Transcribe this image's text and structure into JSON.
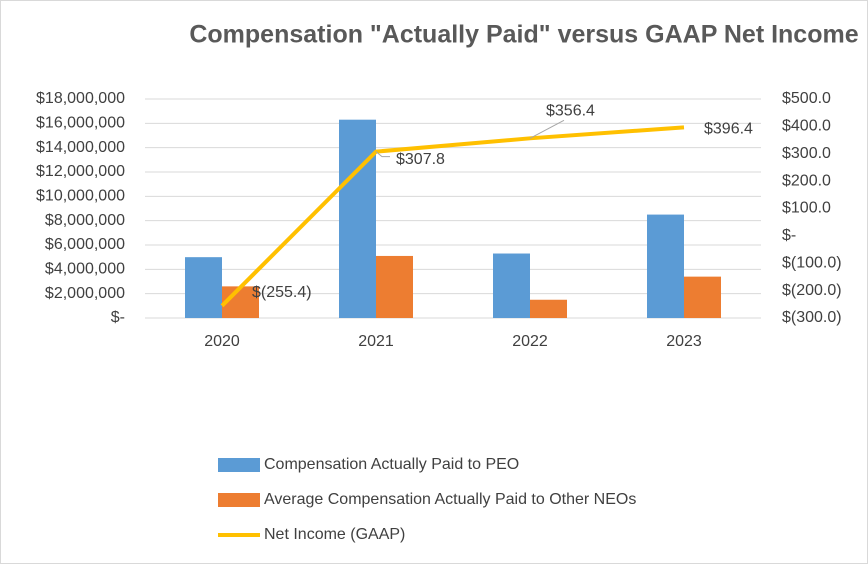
{
  "chart_data": {
    "type": "bar",
    "title": "Compensation \"Actually Paid\" versus GAAP Net Income",
    "categories": [
      "2020",
      "2021",
      "2022",
      "2023"
    ],
    "series": [
      {
        "name": "Compensation Actually Paid to PEO",
        "color": "#5b9bd5",
        "type": "bar",
        "values": [
          5000000,
          16300000,
          5300000,
          8500000
        ]
      },
      {
        "name": "Average Compensation Actually Paid to Other NEOs",
        "color": "#ed7d31",
        "type": "bar",
        "values": [
          2600000,
          5100000,
          1500000,
          3400000
        ]
      },
      {
        "name": "Net Income (GAAP)",
        "color": "#ffc000",
        "type": "line",
        "axis": "y2",
        "values": [
          -255.4,
          307.8,
          356.4,
          396.4
        ],
        "value_labels": [
          "$(255.4)",
          "$307.8",
          "$356.4",
          "$396.4"
        ]
      }
    ],
    "ylim": [
      0,
      18000000
    ],
    "yticks": [
      {
        "value": 0,
        "label": "$-"
      },
      {
        "value": 2000000,
        "label": "$2,000,000"
      },
      {
        "value": 4000000,
        "label": "$4,000,000"
      },
      {
        "value": 6000000,
        "label": "$6,000,000"
      },
      {
        "value": 8000000,
        "label": "$8,000,000"
      },
      {
        "value": 10000000,
        "label": "$10,000,000"
      },
      {
        "value": 12000000,
        "label": "$12,000,000"
      },
      {
        "value": 14000000,
        "label": "$14,000,000"
      },
      {
        "value": 16000000,
        "label": "$16,000,000"
      },
      {
        "value": 18000000,
        "label": "$18,000,000"
      }
    ],
    "y2lim": [
      -300,
      500
    ],
    "y2ticks": [
      {
        "value": 500,
        "label": "$500.0"
      },
      {
        "value": 400,
        "label": "$400.0"
      },
      {
        "value": 300,
        "label": "$300.0"
      },
      {
        "value": 200,
        "label": "$200.0"
      },
      {
        "value": 100,
        "label": "$100.0"
      },
      {
        "value": 0,
        "label": "$-"
      },
      {
        "value": -100,
        "label": "$(100.0)"
      },
      {
        "value": -200,
        "label": "$(200.0)"
      },
      {
        "value": -300,
        "label": "$(300.0)"
      }
    ],
    "grid": true,
    "legend": "bottom"
  }
}
